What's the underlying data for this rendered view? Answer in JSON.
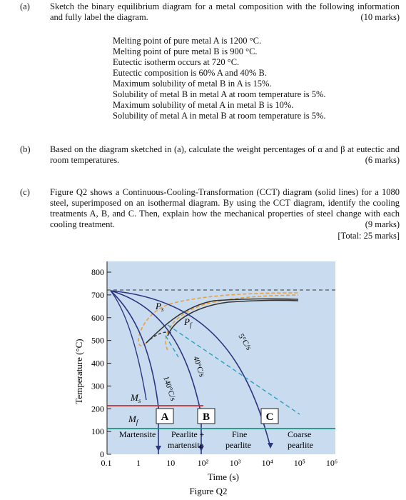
{
  "parts": [
    {
      "label": "(a)",
      "text": "Sketch the binary equilibrium diagram for a metal composition with the following information and fully label the diagram.",
      "marks": "(10 marks)",
      "items": [
        "Melting point of pure metal A is 1200 °C.",
        "Melting point of pure metal B is 900 °C.",
        "Eutectic isotherm occurs at 720 °C.",
        "Eutectic composition is 60% A and 40% B.",
        "Maximum solubility of metal B in A is 15%.",
        "Solubility of metal B in metal A at room temperature is 5%.",
        "Maximum solubility of metal A in metal B is 10%.",
        "Solubility of metal A in metal B at room temperature is 5%."
      ]
    },
    {
      "label": "(b)",
      "text": "Based on the diagram sketched in (a), calculate the weight percentages of α and β at eutectic and room temperatures.",
      "marks": "(6 marks)"
    },
    {
      "label": "(c)",
      "text": "Figure Q2 shows a Continuous-Cooling-Transformation (CCT) diagram (solid lines) for a 1080 steel, superimposed on an isothermal diagram. By using the CCT diagram, identify the cooling treatments A, B, and C. Then, explain how the mechanical properties of steel change with each cooling treatment.",
      "marks": "(9 marks)"
    }
  ],
  "total": "[Total: 25 marks]",
  "figure": {
    "y_axis_label": "Temperature (°C)",
    "x_axis_label": "Time (s)",
    "caption": "Figure Q2",
    "yticks": [
      "800",
      "700",
      "600",
      "500",
      "400",
      "300",
      "200",
      "100",
      "0"
    ],
    "xticks": [
      "0.1",
      "1",
      "10",
      "10²",
      "10³",
      "10⁴",
      "10⁵",
      "10⁶"
    ],
    "ps": {
      "main": "P",
      "sub": "s"
    },
    "pf": {
      "main": "P",
      "sub": "f"
    },
    "ms": {
      "main": "M",
      "sub": "s"
    },
    "mf": {
      "main": "M",
      "sub": "f"
    },
    "rates": [
      "140°C/s",
      "40°C/s",
      "5°C/s"
    ],
    "treatments": [
      "A",
      "B",
      "C"
    ],
    "regions": [
      [
        "Martensite"
      ],
      [
        "Pearlite +",
        "martensite"
      ],
      [
        "Fine",
        "pearlite"
      ],
      [
        "Coarse",
        "pearlite"
      ]
    ]
  }
}
